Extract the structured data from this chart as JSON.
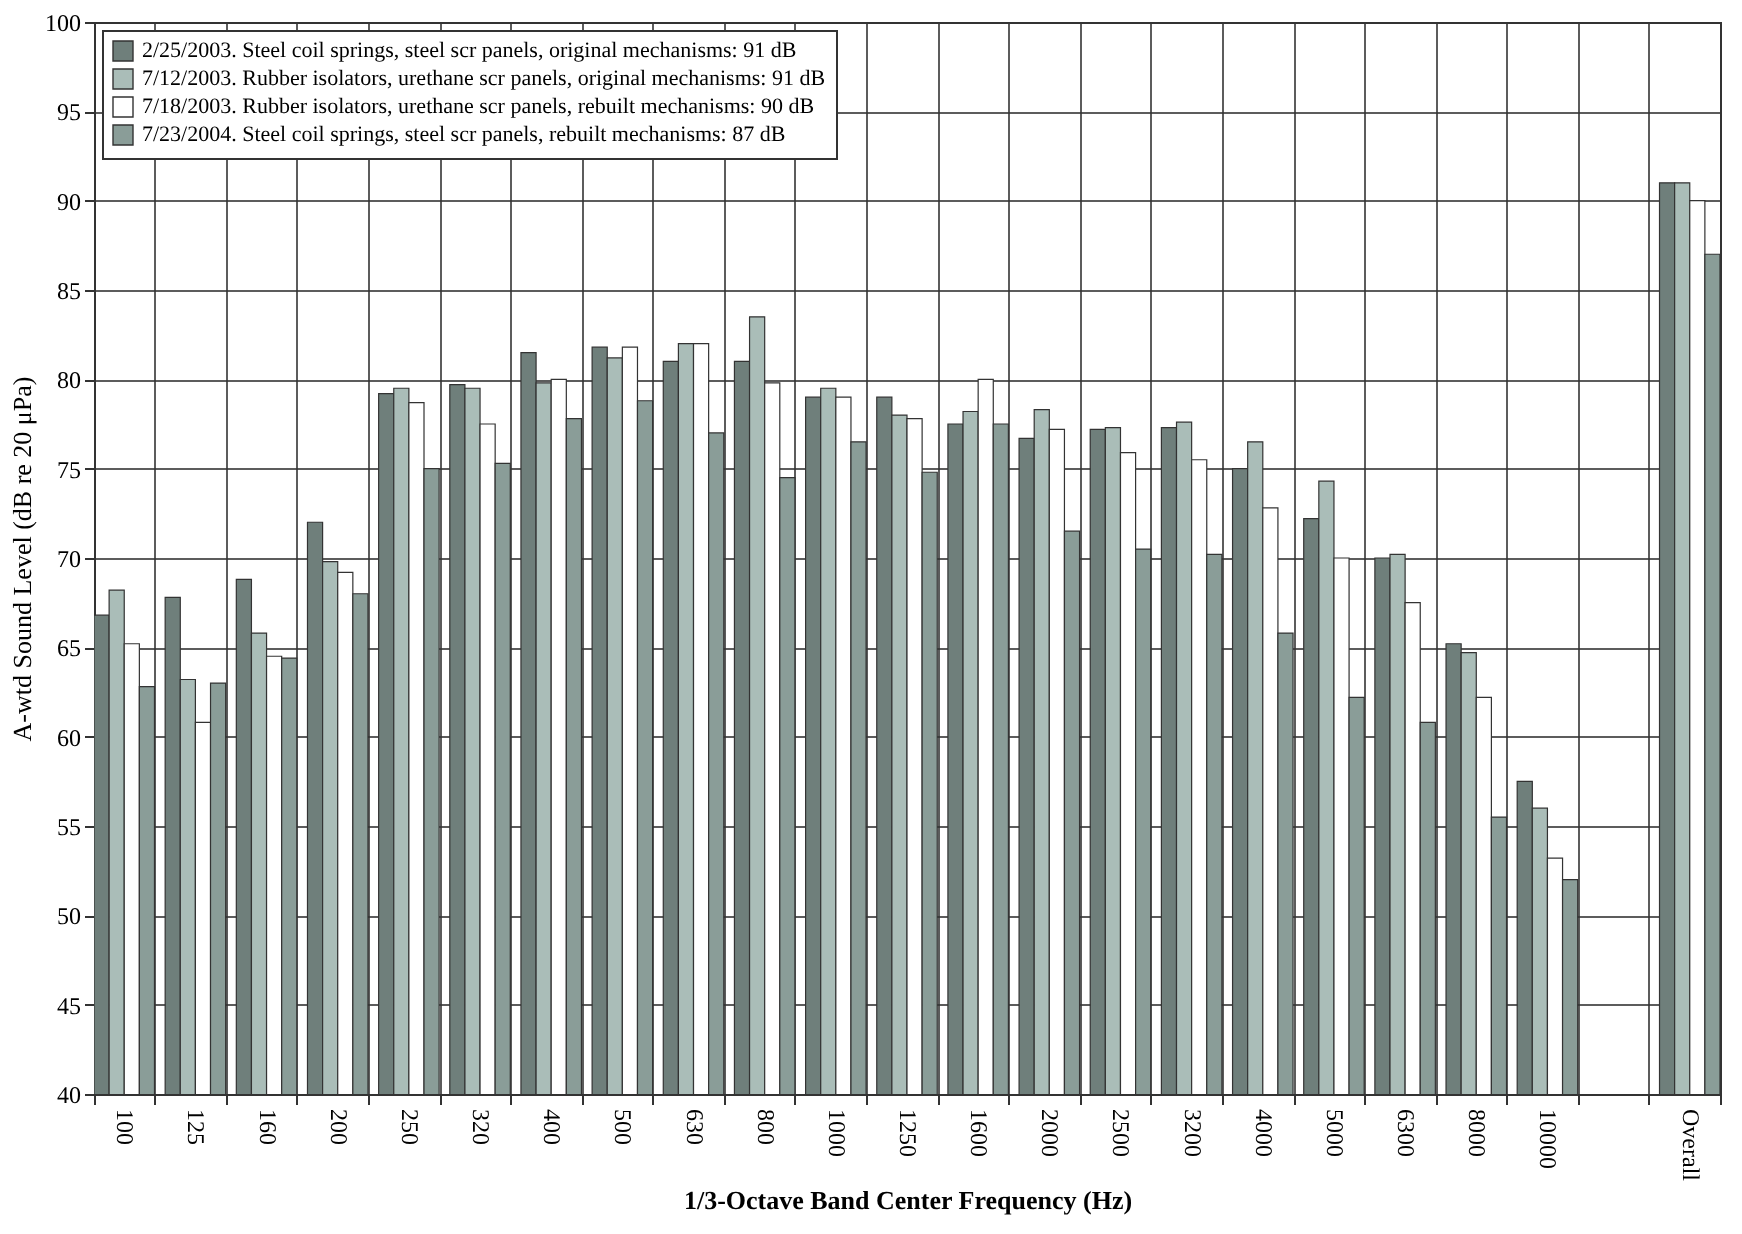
{
  "chart_data": {
    "type": "bar",
    "xlabel": "1/3-Octave Band Center Frequency (Hz)",
    "ylabel": "A-wtd Sound Level (dB re 20 μPa)",
    "categories": [
      "100",
      "125",
      "160",
      "200",
      "250",
      "320",
      "400",
      "500",
      "630",
      "800",
      "1000",
      "1250",
      "1600",
      "2000",
      "2500",
      "3200",
      "4000",
      "5000",
      "6300",
      "8000",
      "10000",
      null,
      "Overall"
    ],
    "series": [
      {
        "name": "2/25/2003. Steel coil springs, steel scr panels, original mechanisms: 91 dB",
        "color": "#6f7f7b",
        "values": [
          66.8,
          67.8,
          68.8,
          72.0,
          79.2,
          79.7,
          81.5,
          81.8,
          81.0,
          81.0,
          79.0,
          79.0,
          77.5,
          76.7,
          77.2,
          77.3,
          75.0,
          72.2,
          70.0,
          65.2,
          57.5,
          null,
          91
        ]
      },
      {
        "name": "7/12/2003. Rubber isolators, urethane scr panels, original mechanisms: 91 dB",
        "color": "#aabdb8",
        "values": [
          68.2,
          63.2,
          65.8,
          69.8,
          79.5,
          79.5,
          79.8,
          81.2,
          82.0,
          83.5,
          79.5,
          78.0,
          78.2,
          78.3,
          77.3,
          77.6,
          76.5,
          74.3,
          70.2,
          64.7,
          56.0,
          null,
          91
        ]
      },
      {
        "name": "7/18/2003. Rubber isolators, urethane scr panels, rebuilt mechanisms: 90 dB",
        "color": "#ffffff",
        "values": [
          65.2,
          60.8,
          64.5,
          69.2,
          78.7,
          77.5,
          80.0,
          81.8,
          82.0,
          79.8,
          79.0,
          77.8,
          80.0,
          77.2,
          75.9,
          75.5,
          72.8,
          70.0,
          67.5,
          62.2,
          53.2,
          null,
          90
        ]
      },
      {
        "name": "7/23/2004. Steel coil springs, steel scr panels, rebuilt mechanisms: 87 dB",
        "color": "#8a9d98",
        "values": [
          62.8,
          63.0,
          64.4,
          68.0,
          75.0,
          75.3,
          77.8,
          78.8,
          77.0,
          74.5,
          76.5,
          74.8,
          77.5,
          71.5,
          70.5,
          70.2,
          65.8,
          62.2,
          60.8,
          55.5,
          52.0,
          null,
          87
        ]
      }
    ],
    "ylim": [
      40,
      100
    ],
    "yticks": [
      40,
      45,
      50,
      55,
      60,
      65,
      70,
      75,
      80,
      85,
      90,
      95,
      100
    ],
    "grid": true,
    "legend": "top left"
  }
}
